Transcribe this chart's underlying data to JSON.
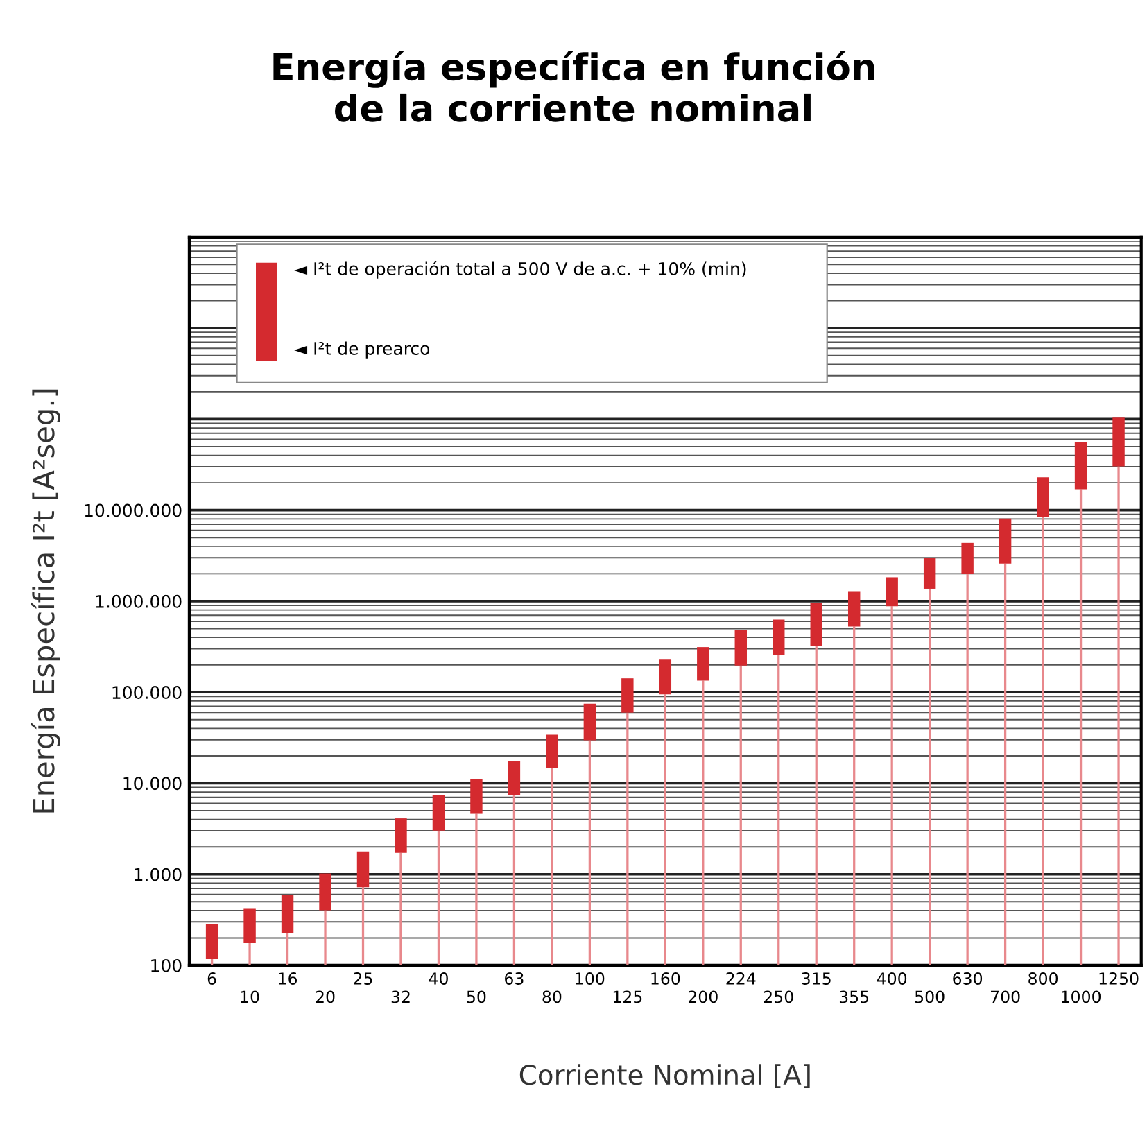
{
  "chart_data": {
    "type": "bar",
    "title": "Energía específica en función\nde la corriente nominal",
    "xlabel": "Corriente Nominal [A]",
    "ylabel": "Energía Específica I²t [A²seg.]",
    "categories": [
      "6",
      "10",
      "16",
      "20",
      "25",
      "32",
      "40",
      "50",
      "63",
      "80",
      "100",
      "125",
      "160",
      "200",
      "224",
      "250",
      "315",
      "355",
      "400",
      "500",
      "630",
      "700",
      "800",
      "1000",
      "1250"
    ],
    "stacked": true,
    "series": [
      {
        "color": "#e8888c",
        "values": [
          117,
          175,
          226,
          403,
          721,
          1720,
          3010,
          4610,
          7360,
          14800,
          29600,
          59600,
          94600,
          134000,
          196000,
          254000,
          320000,
          527000,
          879000,
          1370000,
          1980000,
          2590000,
          8450000,
          17000000,
          30300000
        ]
      },
      {
        "color": "#d42a2f",
        "values": [
          167,
          242,
          366,
          617,
          1059,
          2390,
          4350,
          6390,
          10240,
          19300,
          45200,
          82400,
          137400,
          179000,
          285000,
          373000,
          646000,
          763000,
          951000,
          1630000,
          2390000,
          5510000,
          14550000,
          39000000,
          73700000
        ]
      }
    ],
    "log": true,
    "ylim": [
      100,
      10000000000
    ],
    "yticks": [
      {
        "value": 100,
        "label": "100"
      },
      {
        "value": 1000,
        "label": "1.000"
      },
      {
        "value": 10000,
        "label": "10.000"
      },
      {
        "value": 100000,
        "label": "100.000"
      },
      {
        "value": 1000000,
        "label": "1.000.000"
      },
      {
        "value": 10000000,
        "label": "10.000.000"
      },
      {
        "value": 100000000,
        "label": null
      },
      {
        "value": 1000000000,
        "label": null
      },
      {
        "value": 10000000000,
        "label": null
      }
    ],
    "grid": "y",
    "annotations": [
      "◄ I²t de operación total a 500 V de a.c. + 10% (min)",
      "◄ I²t de prearco"
    ]
  }
}
